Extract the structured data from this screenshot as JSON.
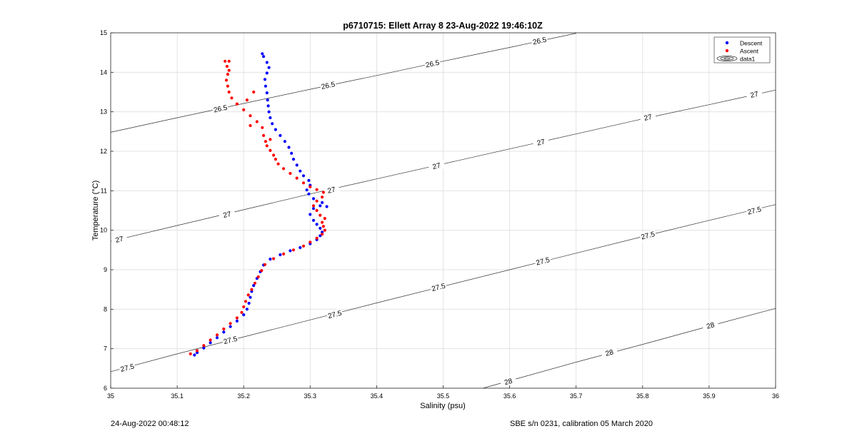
{
  "chart_data": {
    "type": "scatter",
    "title": "p6710715: Ellett Array 8 23-Aug-2022 19:46:10Z",
    "xlabel": "Salinity (psu)",
    "ylabel": "Temperature (°C)",
    "xlim": [
      35,
      36
    ],
    "ylim": [
      6,
      15
    ],
    "xticks": [
      "35",
      "35.1",
      "35.2",
      "35.3",
      "35.4",
      "35.5",
      "35.6",
      "35.7",
      "35.8",
      "35.9",
      "36"
    ],
    "yticks": [
      "6",
      "7",
      "8",
      "9",
      "10",
      "11",
      "12",
      "13",
      "14",
      "15"
    ],
    "grid": true,
    "legend": {
      "position": "top-right",
      "entries": [
        "Descent",
        "Ascent",
        "data1"
      ]
    },
    "series": [
      {
        "name": "Descent",
        "color": "#0000ff",
        "points": [
          [
            35.126,
            6.84
          ],
          [
            35.13,
            6.9
          ],
          [
            35.14,
            7.02
          ],
          [
            35.15,
            7.15
          ],
          [
            35.16,
            7.28
          ],
          [
            35.17,
            7.42
          ],
          [
            35.18,
            7.56
          ],
          [
            35.19,
            7.7
          ],
          [
            35.2,
            7.86
          ],
          [
            35.205,
            8.0
          ],
          [
            35.208,
            8.15
          ],
          [
            35.21,
            8.3
          ],
          [
            35.212,
            8.45
          ],
          [
            35.215,
            8.6
          ],
          [
            35.22,
            8.78
          ],
          [
            35.225,
            8.95
          ],
          [
            35.23,
            9.12
          ],
          [
            35.24,
            9.27
          ],
          [
            35.255,
            9.38
          ],
          [
            35.27,
            9.48
          ],
          [
            35.285,
            9.56
          ],
          [
            35.3,
            9.66
          ],
          [
            35.31,
            9.76
          ],
          [
            35.315,
            9.86
          ],
          [
            35.318,
            9.95
          ],
          [
            35.315,
            10.05
          ],
          [
            35.31,
            10.15
          ],
          [
            35.305,
            10.25
          ],
          [
            35.3,
            10.4
          ],
          [
            35.305,
            10.55
          ],
          [
            35.315,
            10.62
          ],
          [
            35.325,
            10.6
          ],
          [
            35.318,
            10.7
          ],
          [
            35.305,
            10.8
          ],
          [
            35.298,
            10.92
          ],
          [
            35.295,
            11.02
          ],
          [
            35.3,
            11.14
          ],
          [
            35.298,
            11.26
          ],
          [
            35.29,
            11.38
          ],
          [
            35.285,
            11.5
          ],
          [
            35.28,
            11.65
          ],
          [
            35.275,
            11.8
          ],
          [
            35.272,
            11.95
          ],
          [
            35.268,
            12.1
          ],
          [
            35.262,
            12.25
          ],
          [
            35.255,
            12.4
          ],
          [
            35.248,
            12.55
          ],
          [
            35.243,
            12.7
          ],
          [
            35.24,
            12.85
          ],
          [
            35.238,
            13.0
          ],
          [
            35.237,
            13.15
          ],
          [
            35.236,
            13.3
          ],
          [
            35.235,
            13.48
          ],
          [
            35.233,
            13.65
          ],
          [
            35.232,
            13.82
          ],
          [
            35.235,
            13.98
          ],
          [
            35.238,
            14.12
          ],
          [
            35.235,
            14.25
          ],
          [
            35.23,
            14.4
          ],
          [
            35.228,
            14.47
          ]
        ]
      },
      {
        "name": "Ascent",
        "color": "#ff0000",
        "points": [
          [
            35.12,
            6.87
          ],
          [
            35.13,
            6.95
          ],
          [
            35.14,
            7.08
          ],
          [
            35.15,
            7.22
          ],
          [
            35.16,
            7.35
          ],
          [
            35.17,
            7.5
          ],
          [
            35.18,
            7.64
          ],
          [
            35.19,
            7.78
          ],
          [
            35.197,
            7.92
          ],
          [
            35.2,
            8.06
          ],
          [
            35.203,
            8.2
          ],
          [
            35.207,
            8.36
          ],
          [
            35.212,
            8.5
          ],
          [
            35.217,
            8.66
          ],
          [
            35.222,
            8.82
          ],
          [
            35.227,
            8.98
          ],
          [
            35.232,
            9.13
          ],
          [
            35.245,
            9.28
          ],
          [
            35.26,
            9.4
          ],
          [
            35.275,
            9.5
          ],
          [
            35.29,
            9.6
          ],
          [
            35.3,
            9.7
          ],
          [
            35.31,
            9.8
          ],
          [
            35.318,
            9.9
          ],
          [
            35.322,
            10.0
          ],
          [
            35.32,
            10.1
          ],
          [
            35.318,
            10.2
          ],
          [
            35.322,
            10.3
          ],
          [
            35.315,
            10.38
          ],
          [
            35.31,
            10.5
          ],
          [
            35.305,
            10.62
          ],
          [
            35.31,
            10.74
          ],
          [
            35.318,
            10.84
          ],
          [
            35.32,
            10.96
          ],
          [
            35.31,
            11.03
          ],
          [
            35.3,
            11.1
          ],
          [
            35.29,
            11.2
          ],
          [
            35.28,
            11.32
          ],
          [
            35.27,
            11.44
          ],
          [
            35.26,
            11.56
          ],
          [
            35.252,
            11.68
          ],
          [
            35.248,
            11.8
          ],
          [
            35.245,
            11.9
          ],
          [
            35.24,
            12.02
          ],
          [
            35.235,
            12.14
          ],
          [
            35.233,
            12.25
          ],
          [
            35.23,
            12.4
          ],
          [
            35.228,
            12.6
          ],
          [
            35.22,
            12.75
          ],
          [
            35.21,
            12.9
          ],
          [
            35.2,
            13.05
          ],
          [
            35.19,
            13.2
          ],
          [
            35.182,
            13.35
          ],
          [
            35.178,
            13.5
          ],
          [
            35.176,
            13.65
          ],
          [
            35.174,
            13.8
          ],
          [
            35.176,
            13.95
          ],
          [
            35.178,
            14.05
          ],
          [
            35.175,
            14.15
          ],
          [
            35.172,
            14.28
          ],
          [
            35.178,
            14.28
          ],
          [
            35.24,
            12.3
          ],
          [
            35.215,
            13.5
          ],
          [
            35.205,
            13.3
          ],
          [
            35.21,
            12.65
          ]
        ]
      }
    ],
    "contours": [
      {
        "level": "26.5",
        "points": [
          [
            35,
            12.48
          ],
          [
            35.1,
            12.85
          ],
          [
            35.2,
            13.21
          ],
          [
            35.3,
            13.57
          ],
          [
            35.4,
            13.92
          ],
          [
            35.5,
            14.28
          ],
          [
            35.6,
            14.63
          ],
          [
            35.7,
            14.99
          ],
          [
            35.7,
            14.99
          ]
        ],
        "labels": [
          [
            35.165,
            13.08
          ],
          [
            35.327,
            13.67
          ],
          [
            35.484,
            14.22
          ],
          [
            35.645,
            14.8
          ]
        ]
      },
      {
        "level": "27",
        "points": [
          [
            35,
            9.72
          ],
          [
            35.1,
            10.12
          ],
          [
            35.2,
            10.52
          ],
          [
            35.3,
            10.92
          ],
          [
            35.4,
            11.3
          ],
          [
            35.5,
            11.68
          ],
          [
            35.6,
            12.06
          ],
          [
            35.7,
            12.44
          ],
          [
            35.8,
            12.82
          ],
          [
            35.9,
            13.18
          ],
          [
            36,
            13.55
          ]
        ],
        "labels": [
          [
            35.013,
            9.77
          ],
          [
            35.175,
            10.4
          ],
          [
            35.332,
            11.02
          ],
          [
            35.49,
            11.63
          ],
          [
            35.647,
            12.23
          ],
          [
            35.808,
            12.86
          ],
          [
            35.968,
            13.44
          ]
        ]
      },
      {
        "level": "27.5",
        "points": [
          [
            35,
            6.42
          ],
          [
            35.1,
            6.87
          ],
          [
            35.2,
            7.3
          ],
          [
            35.3,
            7.73
          ],
          [
            35.4,
            8.16
          ],
          [
            35.5,
            8.58
          ],
          [
            35.6,
            9.0
          ],
          [
            35.7,
            9.42
          ],
          [
            35.8,
            9.84
          ],
          [
            35.9,
            10.25
          ],
          [
            36,
            10.65
          ]
        ],
        "labels": [
          [
            35.025,
            6.52
          ],
          [
            35.18,
            7.22
          ],
          [
            35.337,
            7.87
          ],
          [
            35.493,
            8.56
          ],
          [
            35.65,
            9.22
          ],
          [
            35.808,
            9.87
          ],
          [
            35.968,
            10.5
          ]
        ]
      },
      {
        "level": "28",
        "points": [
          [
            35.56,
            6.0
          ],
          [
            35.6,
            6.19
          ],
          [
            35.7,
            6.66
          ],
          [
            35.8,
            7.11
          ],
          [
            35.9,
            7.57
          ],
          [
            36,
            8.02
          ]
        ],
        "labels": [
          [
            35.598,
            6.17
          ],
          [
            35.75,
            6.9
          ],
          [
            35.902,
            7.59
          ]
        ]
      }
    ]
  },
  "footer": {
    "left": "24-Aug-2022 00:48:12",
    "right": "SBE s/n 0231, calibration 05 March 2020"
  }
}
